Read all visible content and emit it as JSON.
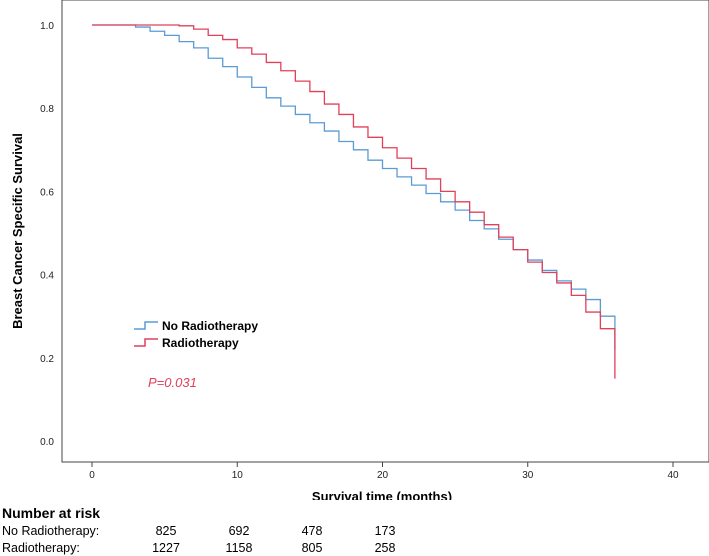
{
  "chart_data": {
    "type": "line",
    "subtype": "kaplan-meier step",
    "title": "",
    "xlabel": "Survival time (months)",
    "ylabel": "Breast Cancer Specific Survival",
    "xlim": [
      -4,
      44
    ],
    "ylim": [
      -0.05,
      1.05
    ],
    "x_ticks": [
      0,
      10,
      20,
      30,
      40
    ],
    "y_ticks": [
      0.0,
      0.2,
      0.4,
      0.6,
      0.8,
      1.0
    ],
    "x_tick_labels": [
      "0",
      "10",
      "20",
      "30",
      "40"
    ],
    "y_tick_labels": [
      "0.0",
      "0.2",
      "0.4",
      "0.6",
      "0.8",
      "1.0"
    ],
    "grid": false,
    "legend_position": "left-middle",
    "annotation": "P=0.031",
    "annotation_color": "#e0405a",
    "series": [
      {
        "name": "No Radiotherapy",
        "color": "#5b9bd5",
        "x": [
          0,
          3,
          4,
          5,
          6,
          7,
          8,
          9,
          10,
          11,
          12,
          13,
          14,
          15,
          16,
          17,
          18,
          19,
          20,
          21,
          22,
          23,
          24,
          25,
          26,
          27,
          28,
          29,
          30,
          31,
          32,
          33,
          34,
          35,
          36,
          36
        ],
        "y": [
          1.0,
          0.995,
          0.985,
          0.975,
          0.96,
          0.945,
          0.92,
          0.9,
          0.875,
          0.85,
          0.825,
          0.805,
          0.785,
          0.765,
          0.745,
          0.72,
          0.7,
          0.675,
          0.655,
          0.635,
          0.615,
          0.595,
          0.575,
          0.555,
          0.53,
          0.51,
          0.485,
          0.46,
          0.435,
          0.41,
          0.385,
          0.365,
          0.34,
          0.3,
          0.27,
          0.22
        ]
      },
      {
        "name": "Radiotherapy",
        "color": "#e0405a",
        "x": [
          0,
          6,
          7,
          8,
          9,
          10,
          11,
          12,
          13,
          14,
          15,
          16,
          17,
          18,
          19,
          20,
          21,
          22,
          23,
          24,
          25,
          26,
          27,
          28,
          29,
          30,
          31,
          32,
          33,
          34,
          35,
          36,
          36
        ],
        "y": [
          1.0,
          0.998,
          0.99,
          0.975,
          0.965,
          0.945,
          0.93,
          0.91,
          0.89,
          0.865,
          0.84,
          0.81,
          0.785,
          0.755,
          0.73,
          0.705,
          0.68,
          0.655,
          0.63,
          0.6,
          0.575,
          0.55,
          0.52,
          0.49,
          0.46,
          0.43,
          0.405,
          0.38,
          0.35,
          0.31,
          0.27,
          0.22,
          0.15
        ]
      }
    ]
  },
  "risk_table": {
    "title": "Number at risk",
    "rows": [
      {
        "label": "No Radiotherapy:",
        "values": [
          "825",
          "692",
          "478",
          "173"
        ]
      },
      {
        "label": "Radiotherapy:",
        "values": [
          "1227",
          "1158",
          "805",
          "258"
        ]
      }
    ]
  }
}
